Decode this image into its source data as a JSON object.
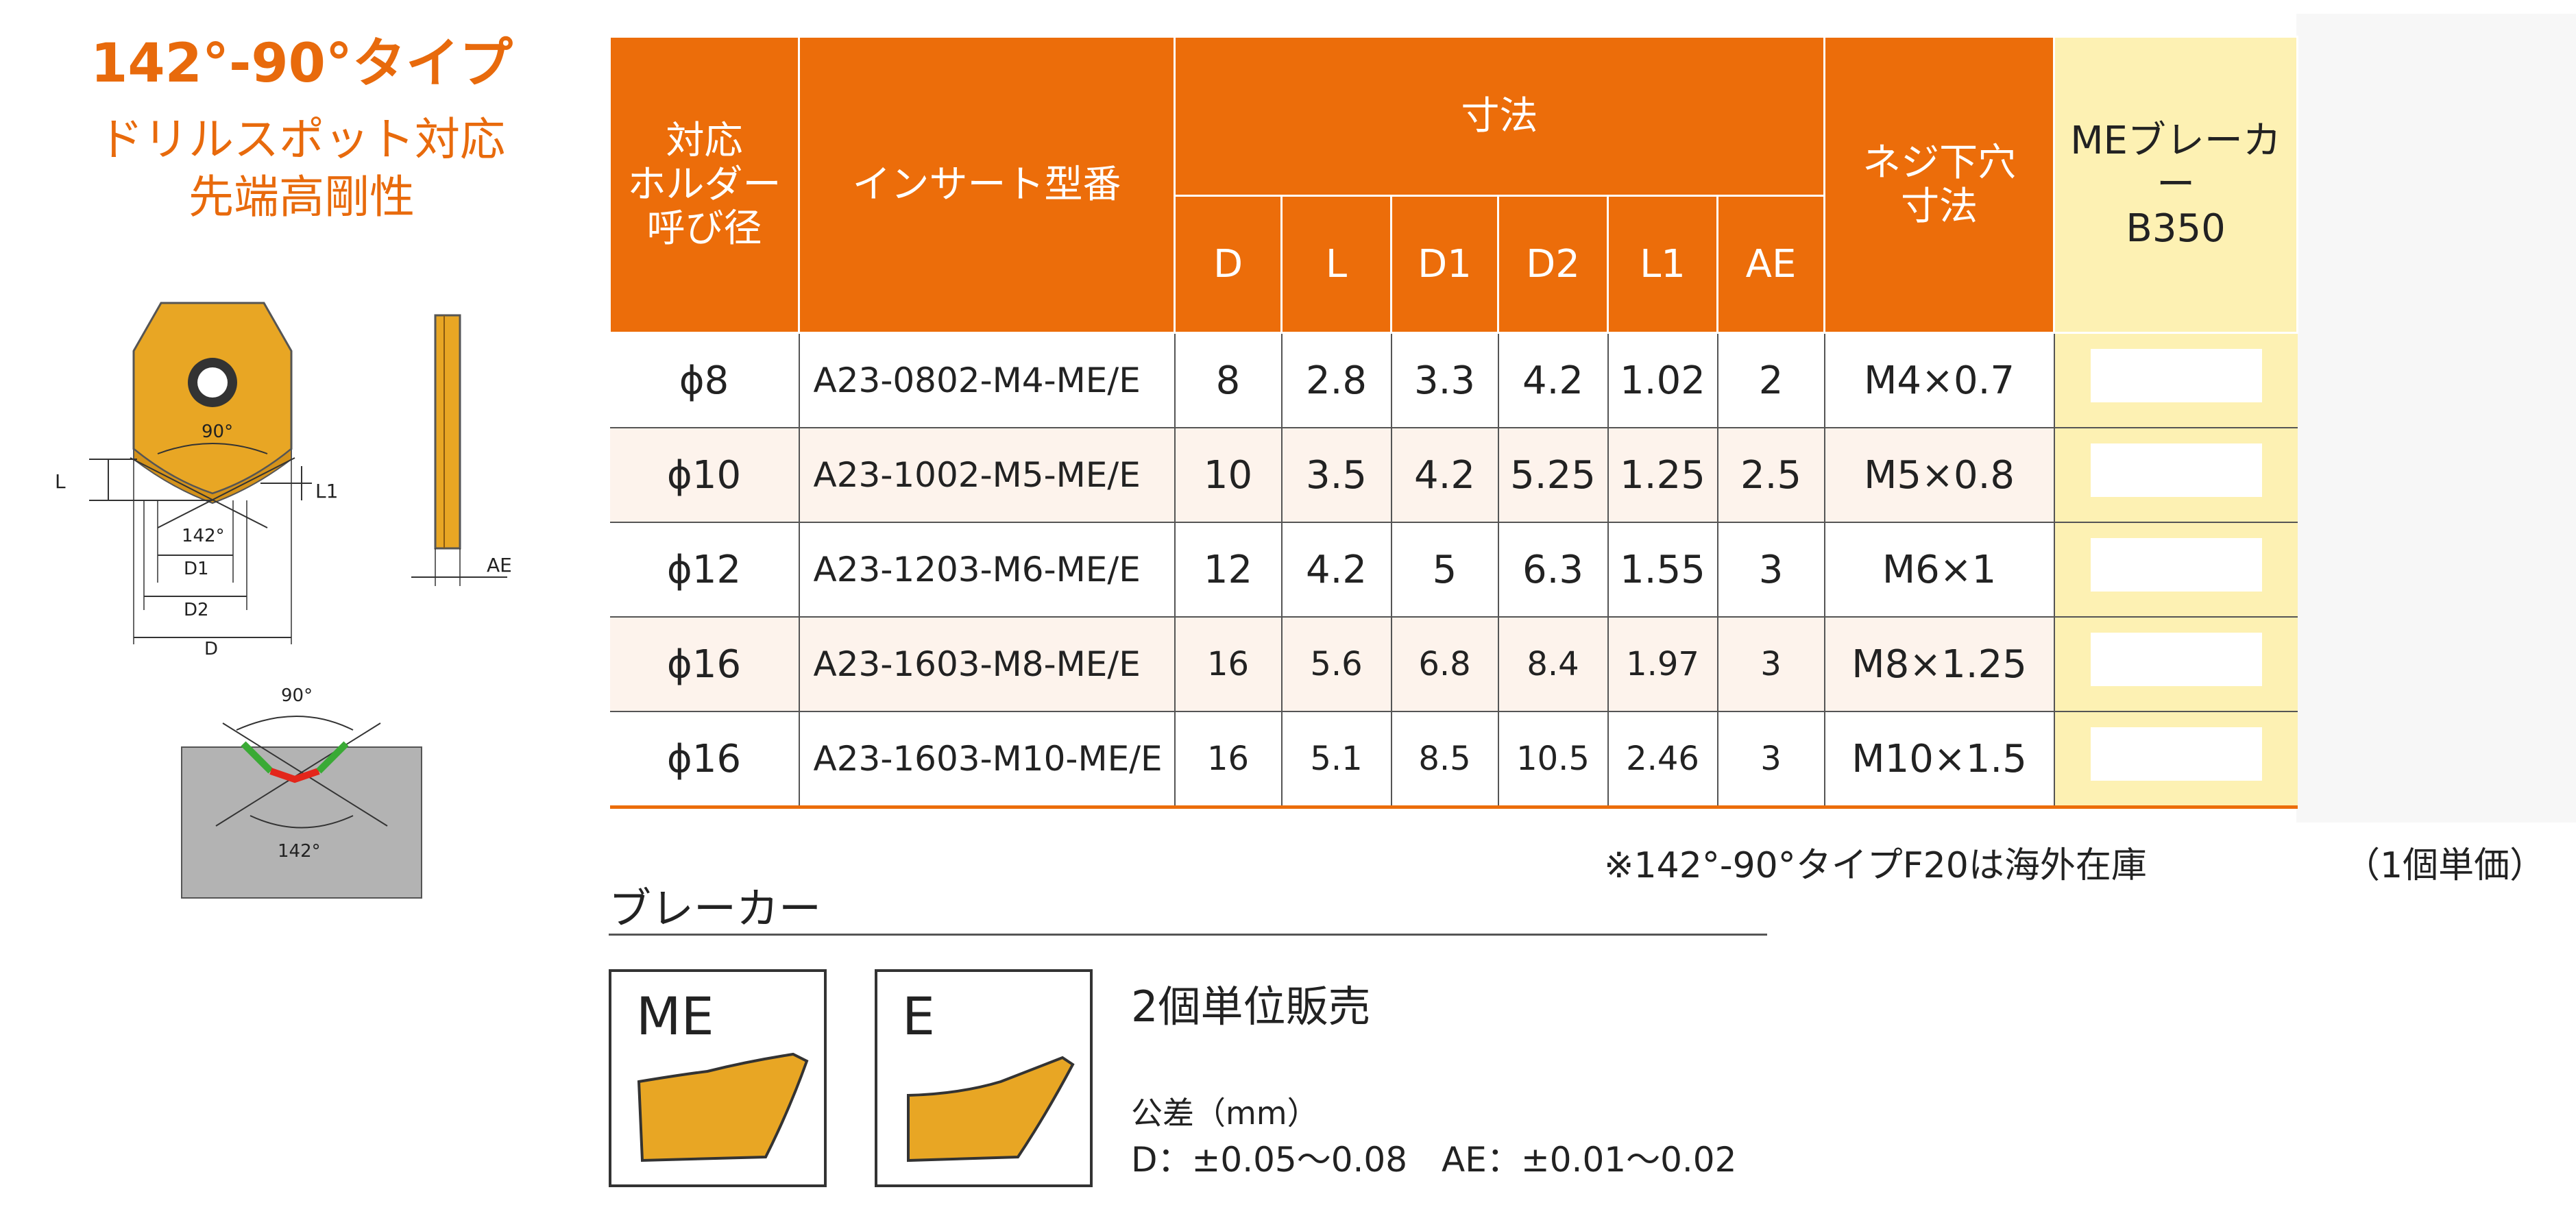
{
  "title": "142°-90°タイプ",
  "subtitle_lines": [
    "ドリルスポット対応",
    "先端高剛性"
  ],
  "diagram": {
    "angle_90": "90°",
    "angle_142": "142°",
    "dim_L": "L",
    "dim_L1": "L1",
    "dim_D1": "D1",
    "dim_D2": "D2",
    "dim_D": "D",
    "dim_AE": "AE",
    "angle_90_lower": "90°",
    "angle_142_lower": "142°"
  },
  "table": {
    "headers": {
      "holder": [
        "対応",
        "ホルダー",
        "呼び径"
      ],
      "insert": "インサート型番",
      "dimensions": "寸法",
      "thread": [
        "ネジ下穴",
        "寸法"
      ],
      "me_breaker": [
        "MEブレーカー",
        "B350"
      ],
      "dim_cols": [
        "D",
        "L",
        "D1",
        "D2",
        "L1",
        "AE"
      ]
    },
    "rows": [
      {
        "holder": "ϕ8",
        "model": "A23-0802-M4-ME/E",
        "D": "8",
        "L": "2.8",
        "D1": "3.3",
        "D2": "4.2",
        "L1": "1.02",
        "AE": "2",
        "thread": "M4×0.7"
      },
      {
        "holder": "ϕ10",
        "model": "A23-1002-M5-ME/E",
        "D": "10",
        "L": "3.5",
        "D1": "4.2",
        "D2": "5.25",
        "L1": "1.25",
        "AE": "2.5",
        "thread": "M5×0.8"
      },
      {
        "holder": "ϕ12",
        "model": "A23-1203-M6-ME/E",
        "D": "12",
        "L": "4.2",
        "D1": "5",
        "D2": "6.3",
        "L1": "1.55",
        "AE": "3",
        "thread": "M6×1"
      },
      {
        "holder": "ϕ16",
        "model": "A23-1603-M8-ME/E",
        "D": "16",
        "L": "5.6",
        "D1": "6.8",
        "D2": "8.4",
        "L1": "1.97",
        "AE": "3",
        "thread": "M8×1.25"
      },
      {
        "holder": "ϕ16",
        "model": "A23-1603-M10-ME/E",
        "D": "16",
        "L": "5.1",
        "D1": "8.5",
        "D2": "10.5",
        "L1": "2.46",
        "AE": "3",
        "thread": "M10×1.5"
      }
    ]
  },
  "note": "※142°-90°タイプF20は海外在庫",
  "unit_note": "（1個単価）",
  "breaker": {
    "heading": "ブレーカー",
    "types": [
      "ME",
      "E"
    ],
    "sold_in": "2個単位販売",
    "tolerance_title": "公差（mm）",
    "tolerance_values": "D：±0.05～0.08　AE：±0.01～0.02"
  },
  "colors": {
    "accent": "#ec6d0a",
    "me_column": "#fdf1b3",
    "insert_gold": "#e8a624",
    "workpiece_gray": "#b3b3b3",
    "edge_green": "#3aaa35",
    "edge_red": "#e3261b"
  }
}
